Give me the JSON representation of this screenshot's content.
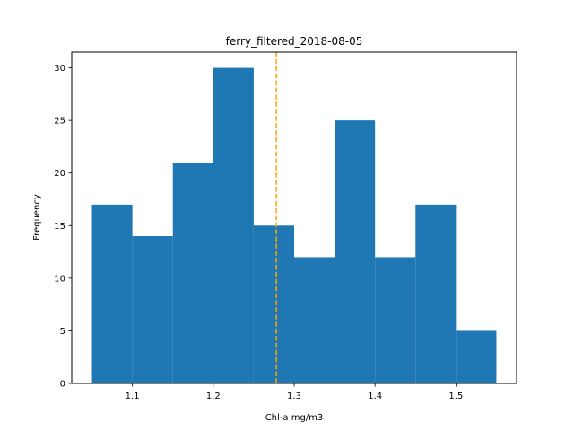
{
  "chart_data": {
    "type": "bar",
    "title": "ferry_filtered_2018-08-05",
    "xlabel": "Chl-a mg/m3",
    "ylabel": "Frequency",
    "bin_edges": [
      1.05,
      1.1,
      1.15,
      1.2,
      1.25,
      1.3,
      1.35,
      1.4,
      1.45,
      1.5,
      1.55
    ],
    "values": [
      17,
      14,
      21,
      30,
      15,
      12,
      25,
      12,
      17,
      5
    ],
    "xlim": [
      1.025,
      1.575
    ],
    "ylim": [
      0,
      31.5
    ],
    "xticks": [
      "1.1",
      "1.2",
      "1.3",
      "1.4",
      "1.5"
    ],
    "xtick_values": [
      1.1,
      1.2,
      1.3,
      1.4,
      1.5
    ],
    "yticks": [
      "0",
      "5",
      "10",
      "15",
      "20",
      "25",
      "30"
    ],
    "ytick_values": [
      0,
      5,
      10,
      15,
      20,
      25,
      30
    ],
    "reference_line": {
      "x": 1.278,
      "style": "dashed"
    },
    "bar_color": "#1f77b4",
    "line_color": "#ffa500",
    "grid": false,
    "legend": "none"
  }
}
